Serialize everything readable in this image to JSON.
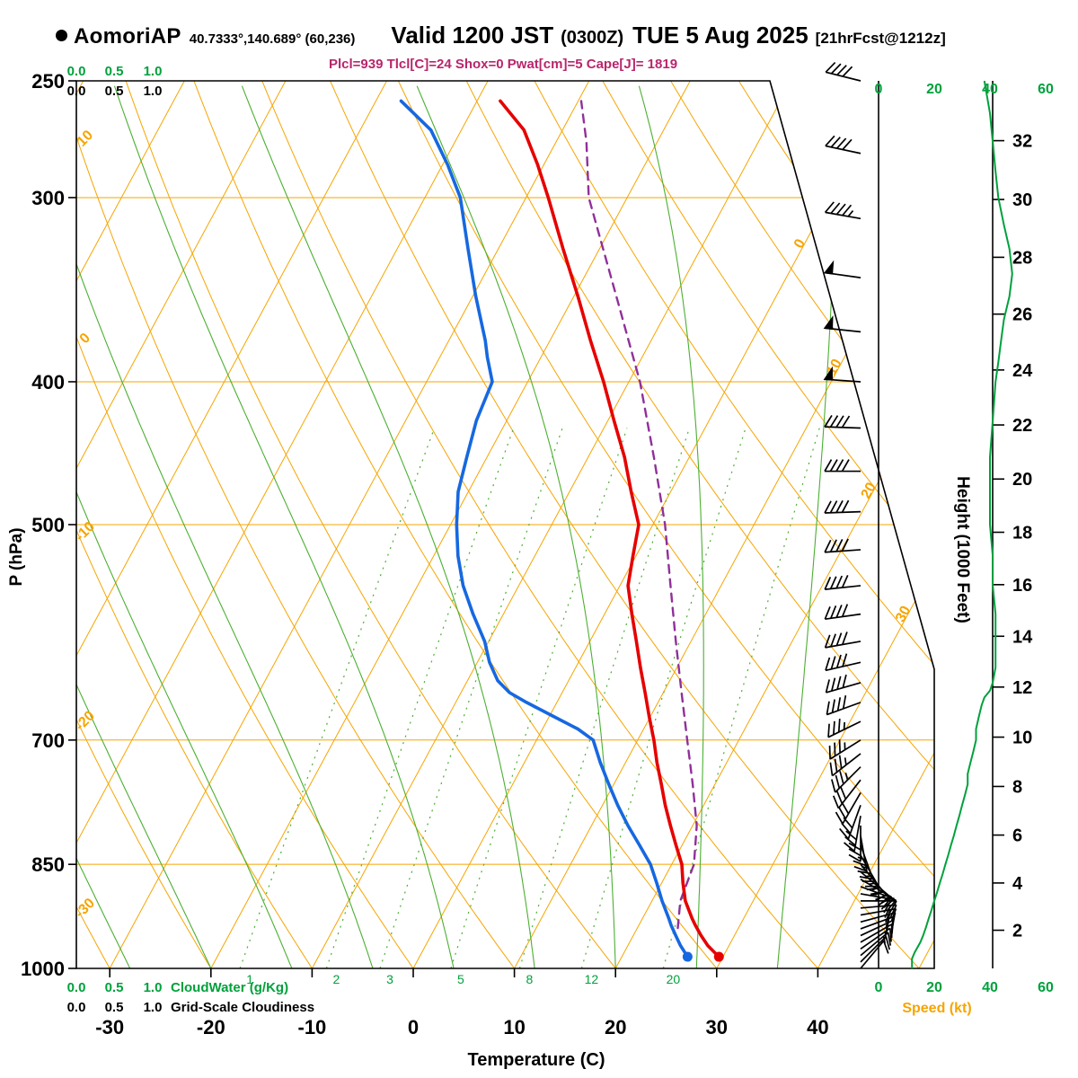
{
  "header": {
    "station": "AomoriAP",
    "coords": "40.7333°,140.689° (60,236)",
    "valid_label": "Valid 1200 JST",
    "valid_zulu": "(0300Z)",
    "valid_date": "TUE 5 Aug 2025",
    "forecast_tag": "[21hrFcst@1212z]",
    "params_line": "Plcl=939 Tlcl[C]=24 Shox=0 Pwat[cm]=5 Cape[J]= 1819"
  },
  "axes": {
    "pressure_label": "P (hPa)",
    "temperature_label": "Temperature (C)",
    "height_label": "Height (1000 Feet)",
    "speed_label": "Speed (kt)",
    "cloudwater_label": "CloudWater (g/Kg)",
    "cloudiness_label": "Grid-Scale Cloudiness",
    "scale_ticks": [
      "0.0",
      "0.5",
      "1.0"
    ],
    "speed_ticks": [
      0,
      20,
      40,
      60
    ],
    "height_ticks": [
      2,
      4,
      6,
      8,
      10,
      12,
      14,
      16,
      18,
      20,
      22,
      24,
      26,
      28,
      30,
      32
    ]
  },
  "chart_data": {
    "type": "skew-t-log-p",
    "title": "AomoriAP Valid 1200 JST (0300Z) TUE 5 Aug 2025 [21hrFcst@1212z]",
    "pressure_axis_hpa": [
      250,
      300,
      400,
      500,
      700,
      850,
      1000
    ],
    "temperature_axis_c": [
      -30,
      -20,
      -10,
      0,
      10,
      20,
      30,
      40
    ],
    "pressure_range_hpa": [
      250,
      1000
    ],
    "temperature_range_at_surface_c": [
      -33,
      46
    ],
    "isotherm_step_c": 10,
    "dry_adiabat_step_c": 10,
    "dry_adiabat_labels_c": [
      10,
      0,
      -10,
      -20,
      -30
    ],
    "isotherm_corner_labels_c": [
      0,
      10,
      20,
      30
    ],
    "moist_adiabat_starts_c": [
      -28,
      -20,
      -12,
      -4,
      4,
      12,
      20,
      28,
      36
    ],
    "mixing_ratio_g_kg": [
      1,
      2,
      3,
      5,
      8,
      12,
      20
    ],
    "series": {
      "temperature_c": [
        [
          982,
          29.6
        ],
        [
          965,
          27.9
        ],
        [
          950,
          26.7
        ],
        [
          935,
          25.6
        ],
        [
          925,
          24.9
        ],
        [
          900,
          23.3
        ],
        [
          875,
          22.1
        ],
        [
          850,
          21.0
        ],
        [
          825,
          19.4
        ],
        [
          800,
          17.8
        ],
        [
          775,
          16.2
        ],
        [
          750,
          14.7
        ],
        [
          725,
          13.1
        ],
        [
          700,
          11.6
        ],
        [
          675,
          9.9
        ],
        [
          650,
          8.2
        ],
        [
          625,
          6.4
        ],
        [
          600,
          4.6
        ],
        [
          575,
          2.7
        ],
        [
          550,
          0.8
        ],
        [
          525,
          -0.3
        ],
        [
          500,
          -1.4
        ],
        [
          475,
          -3.9
        ],
        [
          450,
          -6.4
        ],
        [
          425,
          -9.4
        ],
        [
          400,
          -12.5
        ],
        [
          375,
          -16.0
        ],
        [
          350,
          -19.6
        ],
        [
          325,
          -23.6
        ],
        [
          300,
          -27.8
        ],
        [
          285,
          -30.6
        ],
        [
          270,
          -33.8
        ],
        [
          258,
          -37.7
        ]
      ],
      "dewpoint_c": [
        [
          982,
          26.5
        ],
        [
          965,
          25.2
        ],
        [
          950,
          24.2
        ],
        [
          935,
          23.2
        ],
        [
          925,
          22.6
        ],
        [
          900,
          21.0
        ],
        [
          875,
          19.5
        ],
        [
          850,
          17.9
        ],
        [
          825,
          15.8
        ],
        [
          800,
          13.6
        ],
        [
          775,
          11.5
        ],
        [
          750,
          9.5
        ],
        [
          725,
          7.5
        ],
        [
          700,
          5.6
        ],
        [
          688,
          3.5
        ],
        [
          675,
          0.5
        ],
        [
          660,
          -3.0
        ],
        [
          650,
          -5.2
        ],
        [
          638,
          -7.0
        ],
        [
          620,
          -8.8
        ],
        [
          600,
          -10.4
        ],
        [
          575,
          -13.0
        ],
        [
          550,
          -15.5
        ],
        [
          525,
          -17.6
        ],
        [
          500,
          -19.4
        ],
        [
          475,
          -21.0
        ],
        [
          450,
          -22.0
        ],
        [
          425,
          -23.0
        ],
        [
          400,
          -23.5
        ],
        [
          385,
          -25.3
        ],
        [
          375,
          -26.4
        ],
        [
          350,
          -29.7
        ],
        [
          325,
          -33.0
        ],
        [
          300,
          -36.5
        ],
        [
          285,
          -39.5
        ],
        [
          270,
          -43.0
        ],
        [
          258,
          -47.5
        ]
      ],
      "parcel_c": [
        [
          939,
          24.0
        ],
        [
          900,
          22.8
        ],
        [
          850,
          22.2
        ],
        [
          800,
          20.4
        ],
        [
          750,
          17.8
        ],
        [
          700,
          14.9
        ],
        [
          650,
          11.8
        ],
        [
          600,
          8.5
        ],
        [
          550,
          5.0
        ],
        [
          500,
          1.2
        ],
        [
          450,
          -3.5
        ],
        [
          400,
          -8.9
        ],
        [
          350,
          -15.8
        ],
        [
          300,
          -23.8
        ],
        [
          275,
          -27.0
        ],
        [
          258,
          -29.7
        ]
      ],
      "wind_barbs_p_dir_kt": [
        [
          1000,
          40,
          10
        ],
        [
          990,
          45,
          12
        ],
        [
          980,
          50,
          14
        ],
        [
          970,
          55,
          15
        ],
        [
          960,
          60,
          16
        ],
        [
          950,
          65,
          17
        ],
        [
          940,
          70,
          18
        ],
        [
          930,
          75,
          19
        ],
        [
          920,
          80,
          20
        ],
        [
          910,
          85,
          20
        ],
        [
          900,
          90,
          21
        ],
        [
          890,
          100,
          22
        ],
        [
          880,
          110,
          22
        ],
        [
          870,
          120,
          23
        ],
        [
          860,
          130,
          24
        ],
        [
          850,
          140,
          24
        ],
        [
          838,
          150,
          25
        ],
        [
          825,
          160,
          26
        ],
        [
          813,
          170,
          27
        ],
        [
          800,
          180,
          28
        ],
        [
          788,
          190,
          29
        ],
        [
          775,
          200,
          30
        ],
        [
          760,
          210,
          31
        ],
        [
          745,
          218,
          32
        ],
        [
          730,
          225,
          33
        ],
        [
          715,
          232,
          34
        ],
        [
          700,
          238,
          35
        ],
        [
          680,
          244,
          36
        ],
        [
          660,
          250,
          38
        ],
        [
          640,
          254,
          40
        ],
        [
          620,
          257,
          42
        ],
        [
          600,
          260,
          42
        ],
        [
          575,
          262,
          42
        ],
        [
          550,
          264,
          41
        ],
        [
          520,
          266,
          40
        ],
        [
          490,
          268,
          40
        ],
        [
          460,
          270,
          40
        ],
        [
          430,
          272,
          42
        ],
        [
          400,
          274,
          48
        ],
        [
          370,
          276,
          50
        ],
        [
          340,
          278,
          50
        ],
        [
          310,
          280,
          45
        ],
        [
          280,
          282,
          42
        ],
        [
          250,
          284,
          40
        ]
      ],
      "wind_speed_kt": [
        [
          1000,
          12
        ],
        [
          985,
          12
        ],
        [
          975,
          13
        ],
        [
          960,
          15
        ],
        [
          950,
          16
        ],
        [
          938,
          17
        ],
        [
          925,
          18
        ],
        [
          913,
          19
        ],
        [
          900,
          20
        ],
        [
          888,
          21
        ],
        [
          875,
          22
        ],
        [
          863,
          23
        ],
        [
          850,
          24
        ],
        [
          838,
          25
        ],
        [
          825,
          26
        ],
        [
          813,
          27
        ],
        [
          800,
          28
        ],
        [
          788,
          29
        ],
        [
          775,
          30
        ],
        [
          763,
          31
        ],
        [
          750,
          32
        ],
        [
          738,
          32
        ],
        [
          725,
          33
        ],
        [
          713,
          34
        ],
        [
          700,
          35
        ],
        [
          688,
          35
        ],
        [
          675,
          36
        ],
        [
          663,
          37
        ],
        [
          655,
          38
        ],
        [
          648,
          40
        ],
        [
          640,
          41
        ],
        [
          625,
          42
        ],
        [
          600,
          42
        ],
        [
          575,
          42
        ],
        [
          550,
          41
        ],
        [
          525,
          41
        ],
        [
          500,
          40
        ],
        [
          475,
          40
        ],
        [
          450,
          40
        ],
        [
          425,
          41
        ],
        [
          400,
          42
        ],
        [
          388,
          43
        ],
        [
          375,
          44
        ],
        [
          363,
          45
        ],
        [
          350,
          47
        ],
        [
          338,
          48
        ],
        [
          325,
          47
        ],
        [
          313,
          45
        ],
        [
          300,
          43
        ],
        [
          288,
          42
        ],
        [
          275,
          41
        ],
        [
          263,
          40
        ],
        [
          250,
          38
        ]
      ]
    }
  },
  "colors": {
    "grid_orange": "#f6a500",
    "grid_green": "#4caf32",
    "text_green": "#00a13c",
    "temp_red": "#e60000",
    "dew_blue": "#1668e0",
    "parcel_purple": "#90309a",
    "params_magenta": "#b8266c"
  }
}
